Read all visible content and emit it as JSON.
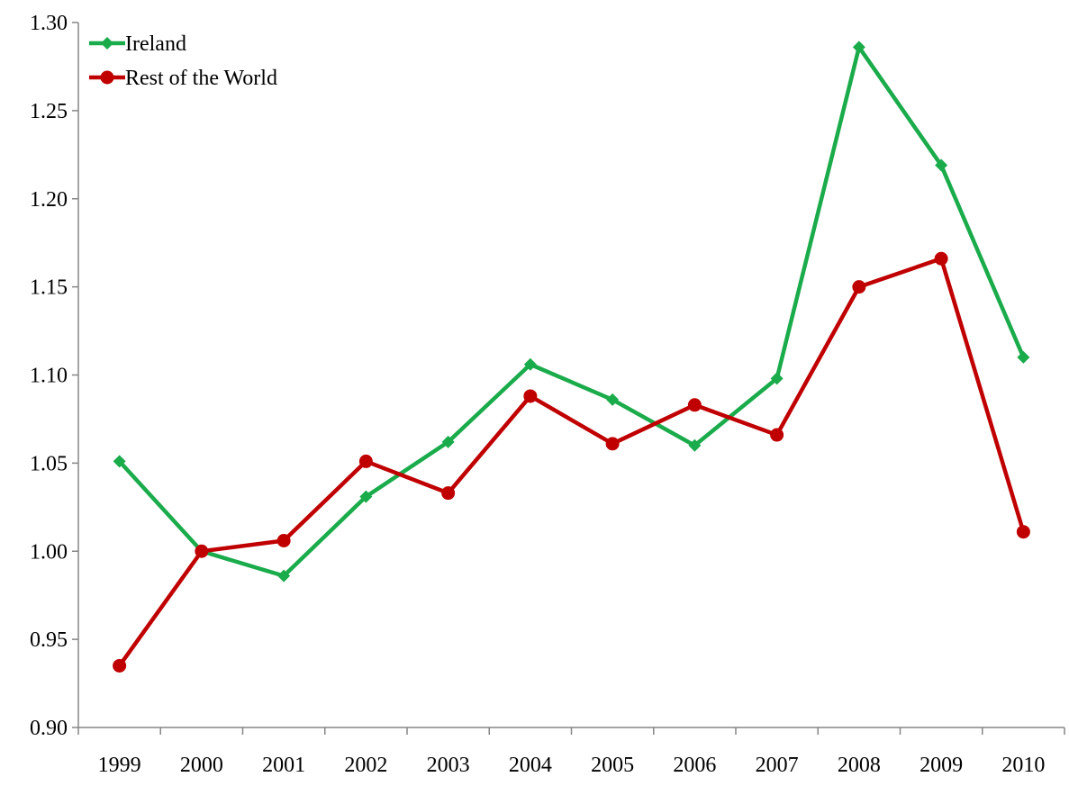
{
  "chart_data": {
    "type": "line",
    "title": "",
    "xlabel": "",
    "ylabel": "",
    "categories": [
      "1999",
      "2000",
      "2001",
      "2002",
      "2003",
      "2004",
      "2005",
      "2006",
      "2007",
      "2008",
      "2009",
      "2010"
    ],
    "ylim": [
      0.9,
      1.3
    ],
    "yticks": [
      "0.90",
      "0.95",
      "1.00",
      "1.05",
      "1.10",
      "1.15",
      "1.20",
      "1.25",
      "1.30"
    ],
    "grid": false,
    "legend_position": "top-left",
    "series": [
      {
        "name": "Ireland",
        "color": "#1aab4b",
        "marker": "diamond",
        "values": [
          1.051,
          1.0,
          0.986,
          1.031,
          1.062,
          1.106,
          1.086,
          1.06,
          1.098,
          1.286,
          1.219,
          1.11
        ]
      },
      {
        "name": "Rest of the World",
        "color": "#c00000",
        "marker": "circle",
        "values": [
          0.935,
          1.0,
          1.006,
          1.051,
          1.033,
          1.088,
          1.061,
          1.083,
          1.066,
          1.15,
          1.166,
          1.011
        ]
      }
    ]
  }
}
